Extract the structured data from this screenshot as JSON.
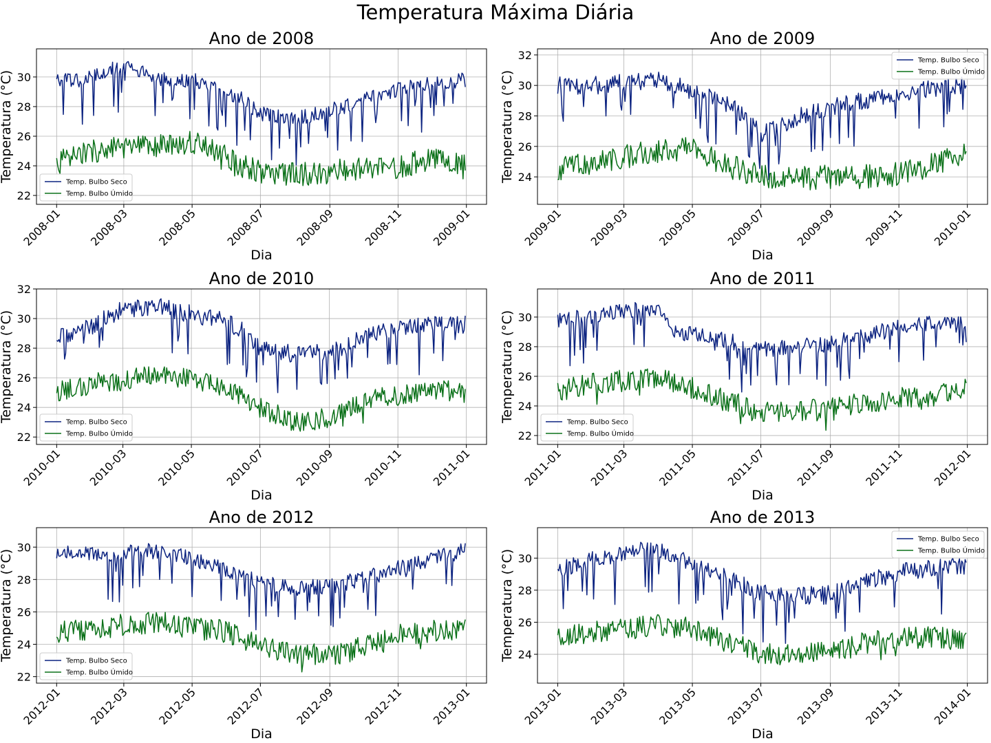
{
  "figure": {
    "suptitle": "Temperatura Máxima Diária"
  },
  "colors": {
    "dry": "#0c2380",
    "wet": "#0a7018",
    "grid": "#b0b0b0",
    "axis": "#000000"
  },
  "chart_data": [
    {
      "type": "line",
      "title": "Ano de 2008",
      "xlabel": "Dia",
      "ylabel": "Temperatura (°C)",
      "xlim": [
        "2007-12-14",
        "2009-01-19"
      ],
      "ylim": [
        21.4,
        31.9
      ],
      "xticks": [
        "2008-01",
        "2008-03",
        "2008-05",
        "2008-07",
        "2008-09",
        "2008-11",
        "2009-01"
      ],
      "yticks": [
        22,
        24,
        26,
        28,
        30
      ],
      "grid": true,
      "legend": "lower-left",
      "series": [
        {
          "name": "Temp. Bulbo Seco",
          "color": "#0c2380",
          "x": [
            "2008-01-01",
            "2008-01-20",
            "2008-02-01",
            "2008-03-01",
            "2008-04-01",
            "2008-05-01",
            "2008-05-25",
            "2008-06-15",
            "2008-07-01",
            "2008-07-20",
            "2008-08-01",
            "2008-08-20",
            "2008-09-01",
            "2008-09-20",
            "2008-10-01",
            "2008-10-20",
            "2008-11-01",
            "2008-12-01",
            "2008-12-31"
          ],
          "y": [
            29.7,
            29.8,
            30.0,
            30.8,
            29.8,
            29.8,
            29.2,
            28.5,
            27.5,
            27.3,
            27.2,
            27.5,
            27.8,
            28.1,
            28.5,
            28.9,
            29.2,
            29.5,
            29.8
          ],
          "noise": 0.5,
          "dips": 0.1,
          "dipdepth": 3.0
        },
        {
          "name": "Temp. Bulbo Úmido",
          "color": "#0a7018",
          "x": [
            "2008-01-01",
            "2008-02-01",
            "2008-03-01",
            "2008-04-01",
            "2008-05-01",
            "2008-05-25",
            "2008-06-15",
            "2008-07-01",
            "2008-08-01",
            "2008-09-01",
            "2008-10-01",
            "2008-11-01",
            "2008-12-01",
            "2008-12-31"
          ],
          "y": [
            24.2,
            25.0,
            25.2,
            25.3,
            25.6,
            25.0,
            24.0,
            23.6,
            23.4,
            23.6,
            23.8,
            23.9,
            24.5,
            24.0
          ],
          "noise": 0.8,
          "dips": 0.02,
          "dipdepth": 1.0
        }
      ]
    },
    {
      "type": "line",
      "title": "Ano de 2009",
      "xlabel": "Dia",
      "ylabel": "Temperatura (°C)",
      "xlim": [
        "2008-12-14",
        "2010-01-19"
      ],
      "ylim": [
        22.2,
        32.4
      ],
      "xticks": [
        "2009-01",
        "2009-03",
        "2009-05",
        "2009-07",
        "2009-09",
        "2009-11",
        "2010-01"
      ],
      "yticks": [
        24,
        26,
        28,
        30,
        32
      ],
      "grid": true,
      "legend": "upper-right",
      "series": [
        {
          "name": "Temp. Bulbo Seco",
          "color": "#0c2380",
          "x": [
            "2009-01-01",
            "2009-02-01",
            "2009-03-01",
            "2009-04-01",
            "2009-05-01",
            "2009-06-01",
            "2009-06-20",
            "2009-07-01",
            "2009-07-20",
            "2009-08-01",
            "2009-09-01",
            "2009-10-01",
            "2009-11-01",
            "2009-12-01",
            "2009-12-31"
          ],
          "y": [
            30.0,
            30.0,
            30.2,
            30.3,
            29.7,
            28.8,
            27.8,
            26.8,
            27.3,
            27.9,
            28.6,
            29.0,
            29.5,
            29.8,
            30.0
          ],
          "noise": 0.6,
          "dips": 0.1,
          "dipdepth": 3.0
        },
        {
          "name": "Temp. Bulbo Úmido",
          "color": "#0a7018",
          "x": [
            "2009-01-01",
            "2009-02-01",
            "2009-03-01",
            "2009-04-01",
            "2009-05-01",
            "2009-06-01",
            "2009-07-01",
            "2009-08-01",
            "2009-09-01",
            "2009-10-01",
            "2009-11-01",
            "2009-12-01",
            "2009-12-31"
          ],
          "y": [
            24.5,
            25.0,
            25.3,
            25.7,
            25.8,
            24.8,
            24.0,
            23.9,
            24.0,
            24.0,
            24.2,
            24.8,
            25.6
          ],
          "noise": 0.8,
          "dips": 0.02,
          "dipdepth": 1.0
        }
      ]
    },
    {
      "type": "line",
      "title": "Ano de 2010",
      "xlabel": "Dia",
      "ylabel": "Temperatura (°C)",
      "xlim": [
        "2009-12-14",
        "2011-01-19"
      ],
      "ylim": [
        21.5,
        32.0
      ],
      "xticks": [
        "2010-01",
        "2010-03",
        "2010-05",
        "2010-07",
        "2010-09",
        "2010-11",
        "2011-01"
      ],
      "yticks": [
        22,
        24,
        26,
        28,
        30,
        32
      ],
      "grid": true,
      "legend": "lower-left",
      "series": [
        {
          "name": "Temp. Bulbo Seco",
          "color": "#0c2380",
          "x": [
            "2010-01-01",
            "2010-02-01",
            "2010-03-01",
            "2010-04-01",
            "2010-05-01",
            "2010-06-01",
            "2010-06-20",
            "2010-07-01",
            "2010-08-01",
            "2010-09-01",
            "2010-09-20",
            "2010-10-01",
            "2010-11-01",
            "2010-12-01",
            "2010-12-31"
          ],
          "y": [
            28.6,
            29.5,
            30.6,
            30.8,
            30.3,
            29.8,
            29.0,
            28.0,
            27.6,
            27.7,
            28.3,
            28.8,
            29.3,
            29.6,
            29.6
          ],
          "noise": 0.6,
          "dips": 0.1,
          "dipdepth": 3.0
        },
        {
          "name": "Temp. Bulbo Úmido",
          "color": "#0a7018",
          "x": [
            "2010-01-01",
            "2010-02-01",
            "2010-03-01",
            "2010-04-01",
            "2010-05-01",
            "2010-06-01",
            "2010-07-01",
            "2010-08-01",
            "2010-09-01",
            "2010-10-01",
            "2010-11-01",
            "2010-12-01",
            "2010-12-31"
          ],
          "y": [
            25.0,
            25.6,
            25.8,
            26.3,
            25.9,
            25.4,
            24.0,
            23.0,
            23.3,
            24.5,
            24.8,
            25.3,
            25.0
          ],
          "noise": 0.7,
          "dips": 0.02,
          "dipdepth": 1.0
        }
      ]
    },
    {
      "type": "line",
      "title": "Ano de 2011",
      "xlabel": "Dia",
      "ylabel": "Temperatura (°C)",
      "xlim": [
        "2010-12-14",
        "2012-01-19"
      ],
      "ylim": [
        21.4,
        31.9
      ],
      "xticks": [
        "2011-01",
        "2011-03",
        "2011-05",
        "2011-07",
        "2011-09",
        "2011-11",
        "2012-01"
      ],
      "yticks": [
        22,
        24,
        26,
        28,
        30
      ],
      "grid": true,
      "legend": "lower-left",
      "series": [
        {
          "name": "Temp. Bulbo Seco",
          "color": "#0c2380",
          "x": [
            "2011-01-01",
            "2011-02-01",
            "2011-03-01",
            "2011-04-01",
            "2011-04-15",
            "2011-05-01",
            "2011-06-01",
            "2011-07-01",
            "2011-08-01",
            "2011-09-01",
            "2011-10-01",
            "2011-11-01",
            "2011-12-01",
            "2011-12-31"
          ],
          "y": [
            29.8,
            30.0,
            30.4,
            30.6,
            29.0,
            28.8,
            28.4,
            27.8,
            28.0,
            28.2,
            28.7,
            29.3,
            29.6,
            29.8
          ],
          "noise": 0.55,
          "dips": 0.1,
          "dipdepth": 3.0
        },
        {
          "name": "Temp. Bulbo Úmido",
          "color": "#0a7018",
          "x": [
            "2011-01-01",
            "2011-02-01",
            "2011-03-01",
            "2011-04-01",
            "2011-05-01",
            "2011-06-01",
            "2011-07-01",
            "2011-08-01",
            "2011-09-01",
            "2011-10-01",
            "2011-11-01",
            "2011-12-01",
            "2011-12-31"
          ],
          "y": [
            25.0,
            25.5,
            25.7,
            26.0,
            25.2,
            24.4,
            23.5,
            23.6,
            23.8,
            24.2,
            24.5,
            24.6,
            25.1
          ],
          "noise": 0.75,
          "dips": 0.02,
          "dipdepth": 1.0
        }
      ]
    },
    {
      "type": "line",
      "title": "Ano de 2012",
      "xlabel": "Dia",
      "ylabel": "Temperatura (°C)",
      "xlim": [
        "2011-12-14",
        "2013-01-19"
      ],
      "ylim": [
        21.6,
        31.2
      ],
      "xticks": [
        "2012-01",
        "2012-03",
        "2012-05",
        "2012-07",
        "2012-09",
        "2012-11",
        "2013-01"
      ],
      "yticks": [
        22,
        24,
        26,
        28,
        30
      ],
      "grid": true,
      "legend": "lower-left",
      "series": [
        {
          "name": "Temp. Bulbo Seco",
          "color": "#0c2380",
          "x": [
            "2012-01-01",
            "2012-02-01",
            "2012-03-01",
            "2012-04-01",
            "2012-05-01",
            "2012-06-01",
            "2012-07-01",
            "2012-08-01",
            "2012-09-01",
            "2012-10-01",
            "2012-11-01",
            "2012-12-01",
            "2012-12-31"
          ],
          "y": [
            29.6,
            29.5,
            29.6,
            29.8,
            29.3,
            28.5,
            27.8,
            27.5,
            27.6,
            28.0,
            28.7,
            29.3,
            29.8
          ],
          "noise": 0.5,
          "dips": 0.1,
          "dipdepth": 2.8
        },
        {
          "name": "Temp. Bulbo Úmido",
          "color": "#0a7018",
          "x": [
            "2012-01-01",
            "2012-02-01",
            "2012-03-01",
            "2012-04-01",
            "2012-05-01",
            "2012-06-01",
            "2012-07-01",
            "2012-08-01",
            "2012-09-01",
            "2012-10-01",
            "2012-11-01",
            "2012-12-01",
            "2012-12-31"
          ],
          "y": [
            24.8,
            24.9,
            25.2,
            25.4,
            25.0,
            24.8,
            23.8,
            23.4,
            23.3,
            23.8,
            24.6,
            24.8,
            25.0
          ],
          "noise": 0.7,
          "dips": 0.02,
          "dipdepth": 1.0
        }
      ]
    },
    {
      "type": "line",
      "title": "Ano de 2013",
      "xlabel": "Dia",
      "ylabel": "Temperatura (°C)",
      "xlim": [
        "2012-12-14",
        "2014-01-19"
      ],
      "ylim": [
        22.2,
        31.9
      ],
      "xticks": [
        "2013-01",
        "2013-03",
        "2013-05",
        "2013-07",
        "2013-09",
        "2013-11",
        "2014-01"
      ],
      "yticks": [
        24,
        26,
        28,
        30
      ],
      "grid": true,
      "legend": "upper-right",
      "series": [
        {
          "name": "Temp. Bulbo Seco",
          "color": "#0c2380",
          "x": [
            "2013-01-01",
            "2013-02-01",
            "2013-03-01",
            "2013-04-01",
            "2013-05-01",
            "2013-06-01",
            "2013-07-01",
            "2013-08-01",
            "2013-09-01",
            "2013-10-01",
            "2013-11-01",
            "2013-12-01",
            "2013-12-31"
          ],
          "y": [
            29.2,
            29.9,
            30.4,
            30.6,
            29.6,
            28.8,
            27.8,
            27.6,
            27.8,
            28.5,
            29.1,
            29.4,
            29.5
          ],
          "noise": 0.55,
          "dips": 0.1,
          "dipdepth": 3.0
        },
        {
          "name": "Temp. Bulbo Úmido",
          "color": "#0a7018",
          "x": [
            "2013-01-01",
            "2013-02-01",
            "2013-03-01",
            "2013-04-01",
            "2013-05-01",
            "2013-06-01",
            "2013-07-01",
            "2013-08-01",
            "2013-09-01",
            "2013-10-01",
            "2013-11-01",
            "2013-12-01",
            "2013-12-31"
          ],
          "y": [
            25.0,
            25.4,
            25.6,
            25.8,
            25.6,
            24.8,
            24.0,
            24.0,
            24.1,
            24.7,
            25.0,
            25.1,
            25.0
          ],
          "noise": 0.7,
          "dips": 0.02,
          "dipdepth": 1.0
        }
      ]
    }
  ]
}
